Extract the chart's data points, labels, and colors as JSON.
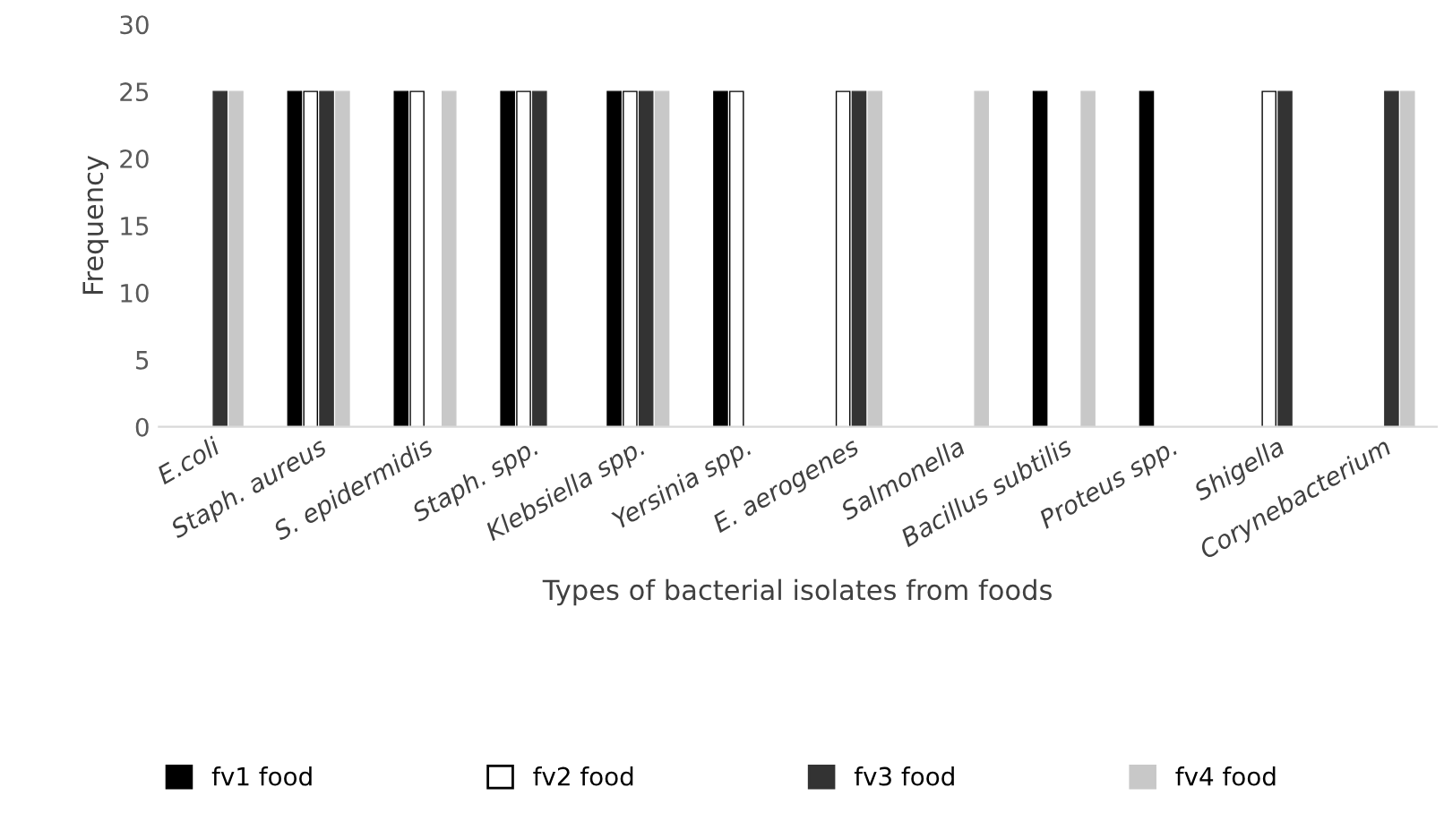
{
  "chart_data": {
    "type": "bar",
    "xlabel": "Types of bacterial isolates from foods",
    "ylabel": "Frequency",
    "categories": [
      "E.coli",
      "Staph. aureus",
      "S. epidermidis",
      "Staph. spp.",
      "Klebsiella spp.",
      "Yersinia spp.",
      "E. aerogenes",
      "Salmonella",
      "Bacillus subtilis",
      "Proteus spp.",
      "Shigella",
      "Corynebacterium"
    ],
    "series": [
      {
        "name": "fv1 food",
        "color": "#000000",
        "values": [
          null,
          25,
          25,
          25,
          25,
          25,
          null,
          null,
          25,
          25,
          null,
          null
        ]
      },
      {
        "name": "fv2 food",
        "color": "#ffffff",
        "values": [
          null,
          25,
          25,
          25,
          25,
          25,
          25,
          null,
          null,
          null,
          25,
          null
        ]
      },
      {
        "name": "fv3 food",
        "color": "#333333",
        "values": [
          25,
          25,
          null,
          25,
          25,
          null,
          25,
          null,
          null,
          null,
          25,
          25
        ]
      },
      {
        "name": "fv4 food",
        "color": "#c8c8c8",
        "values": [
          25,
          25,
          25,
          null,
          25,
          null,
          25,
          25,
          25,
          null,
          null,
          25
        ]
      }
    ],
    "ylim": [
      0,
      30
    ],
    "yticks": [
      0,
      5,
      10,
      15,
      20,
      25,
      30
    ],
    "grid": false,
    "legend": "bottom"
  }
}
